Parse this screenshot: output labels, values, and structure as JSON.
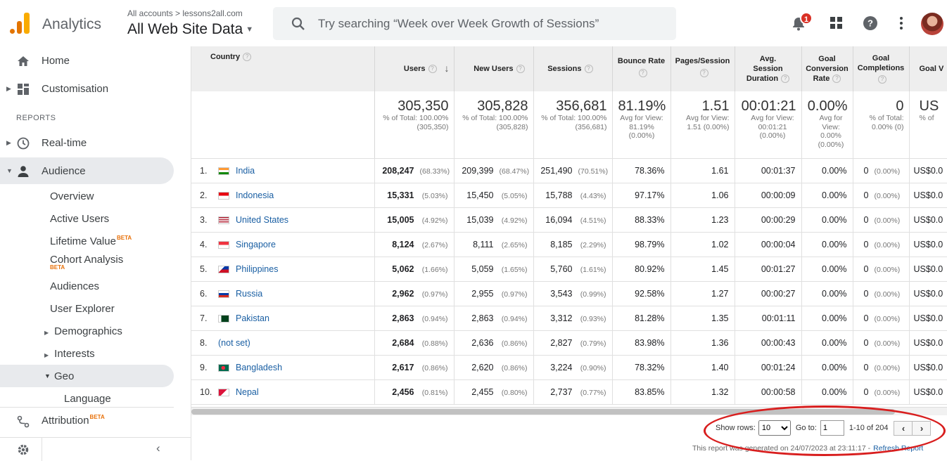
{
  "header": {
    "app_name": "Analytics",
    "account_path": "All accounts > lessons2all.com",
    "property_view": "All Web Site Data",
    "search_placeholder": "Try searching “Week over Week Growth of Sessions”",
    "notification_count": "1",
    "icons": [
      "search-icon",
      "bell-icon",
      "apps-grid-icon",
      "help-icon",
      "more-vert-icon",
      "avatar"
    ]
  },
  "sidebar": {
    "home": "Home",
    "customisation": "Customisation",
    "reports_label": "REPORTS",
    "realtime": "Real-time",
    "audience": "Audience",
    "audience_items": {
      "overview": "Overview",
      "active_users": "Active Users",
      "lifetime_value": "Lifetime Value",
      "cohort_analysis": "Cohort Analysis",
      "audiences": "Audiences",
      "user_explorer": "User Explorer",
      "demographics": "Demographics",
      "interests": "Interests",
      "geo": "Geo",
      "language": "Language"
    },
    "beta": "BETA",
    "attribution": "Attribution",
    "accent_color": "#e8710a"
  },
  "table": {
    "headers": {
      "country": "Country",
      "users": "Users",
      "new_users": "New Users",
      "sessions": "Sessions",
      "bounce_rate": "Bounce Rate",
      "pages_session": "Pages/Session",
      "avg_session_duration": "Avg. Session Duration",
      "goal_conversion_rate": "Goal Conversion Rate",
      "goal_completions": "Goal Completions",
      "goal_value": "Goal V"
    },
    "totals": {
      "users": {
        "big": "305,350",
        "sub": "% of Total: 100.00% (305,350)"
      },
      "new_users": {
        "big": "305,828",
        "sub": "% of Total: 100.00% (305,828)"
      },
      "sessions": {
        "big": "356,681",
        "sub": "% of Total: 100.00% (356,681)"
      },
      "bounce_rate": {
        "big": "81.19%",
        "sub": "Avg for View: 81.19% (0.00%)"
      },
      "pages_session": {
        "big": "1.51",
        "sub": "Avg for View: 1.51 (0.00%)"
      },
      "avg_session_duration": {
        "big": "00:01:21",
        "sub": "Avg for View: 00:01:21 (0.00%)"
      },
      "goal_conversion_rate": {
        "big": "0.00%",
        "sub": "Avg for View: 0.00% (0.00%)"
      },
      "goal_completions": {
        "big": "0",
        "sub": "% of Total: 0.00% (0)"
      },
      "goal_value": {
        "big": "US",
        "sub": "% of"
      }
    },
    "rows": [
      {
        "n": "1.",
        "country": "India",
        "users": "208,247",
        "users_pct": "(68.33%)",
        "new_users": "209,399",
        "new_users_pct": "(68.47%)",
        "sessions": "251,490",
        "sessions_pct": "(70.51%)",
        "bounce": "78.36%",
        "pps": "1.61",
        "dur": "00:01:37",
        "gcr": "0.00%",
        "gc": "0",
        "gc_pct": "(0.00%)",
        "gv": "US$0.0"
      },
      {
        "n": "2.",
        "country": "Indonesia",
        "users": "15,331",
        "users_pct": "(5.03%)",
        "new_users": "15,450",
        "new_users_pct": "(5.05%)",
        "sessions": "15,788",
        "sessions_pct": "(4.43%)",
        "bounce": "97.17%",
        "pps": "1.06",
        "dur": "00:00:09",
        "gcr": "0.00%",
        "gc": "0",
        "gc_pct": "(0.00%)",
        "gv": "US$0.0"
      },
      {
        "n": "3.",
        "country": "United States",
        "users": "15,005",
        "users_pct": "(4.92%)",
        "new_users": "15,039",
        "new_users_pct": "(4.92%)",
        "sessions": "16,094",
        "sessions_pct": "(4.51%)",
        "bounce": "88.33%",
        "pps": "1.23",
        "dur": "00:00:29",
        "gcr": "0.00%",
        "gc": "0",
        "gc_pct": "(0.00%)",
        "gv": "US$0.0"
      },
      {
        "n": "4.",
        "country": "Singapore",
        "users": "8,124",
        "users_pct": "(2.67%)",
        "new_users": "8,111",
        "new_users_pct": "(2.65%)",
        "sessions": "8,185",
        "sessions_pct": "(2.29%)",
        "bounce": "98.79%",
        "pps": "1.02",
        "dur": "00:00:04",
        "gcr": "0.00%",
        "gc": "0",
        "gc_pct": "(0.00%)",
        "gv": "US$0.0"
      },
      {
        "n": "5.",
        "country": "Philippines",
        "users": "5,062",
        "users_pct": "(1.66%)",
        "new_users": "5,059",
        "new_users_pct": "(1.65%)",
        "sessions": "5,760",
        "sessions_pct": "(1.61%)",
        "bounce": "80.92%",
        "pps": "1.45",
        "dur": "00:01:27",
        "gcr": "0.00%",
        "gc": "0",
        "gc_pct": "(0.00%)",
        "gv": "US$0.0"
      },
      {
        "n": "6.",
        "country": "Russia",
        "users": "2,962",
        "users_pct": "(0.97%)",
        "new_users": "2,955",
        "new_users_pct": "(0.97%)",
        "sessions": "3,543",
        "sessions_pct": "(0.99%)",
        "bounce": "92.58%",
        "pps": "1.27",
        "dur": "00:00:27",
        "gcr": "0.00%",
        "gc": "0",
        "gc_pct": "(0.00%)",
        "gv": "US$0.0"
      },
      {
        "n": "7.",
        "country": "Pakistan",
        "users": "2,863",
        "users_pct": "(0.94%)",
        "new_users": "2,863",
        "new_users_pct": "(0.94%)",
        "sessions": "3,312",
        "sessions_pct": "(0.93%)",
        "bounce": "81.28%",
        "pps": "1.35",
        "dur": "00:01:11",
        "gcr": "0.00%",
        "gc": "0",
        "gc_pct": "(0.00%)",
        "gv": "US$0.0"
      },
      {
        "n": "8.",
        "country": "(not set)",
        "users": "2,684",
        "users_pct": "(0.88%)",
        "new_users": "2,636",
        "new_users_pct": "(0.86%)",
        "sessions": "2,827",
        "sessions_pct": "(0.79%)",
        "bounce": "83.98%",
        "pps": "1.36",
        "dur": "00:00:43",
        "gcr": "0.00%",
        "gc": "0",
        "gc_pct": "(0.00%)",
        "gv": "US$0.0"
      },
      {
        "n": "9.",
        "country": "Bangladesh",
        "users": "2,617",
        "users_pct": "(0.86%)",
        "new_users": "2,620",
        "new_users_pct": "(0.86%)",
        "sessions": "3,224",
        "sessions_pct": "(0.90%)",
        "bounce": "78.32%",
        "pps": "1.40",
        "dur": "00:01:24",
        "gcr": "0.00%",
        "gc": "0",
        "gc_pct": "(0.00%)",
        "gv": "US$0.0"
      },
      {
        "n": "10.",
        "country": "Nepal",
        "users": "2,456",
        "users_pct": "(0.81%)",
        "new_users": "2,455",
        "new_users_pct": "(0.80%)",
        "sessions": "2,737",
        "sessions_pct": "(0.77%)",
        "bounce": "83.85%",
        "pps": "1.32",
        "dur": "00:00:58",
        "gcr": "0.00%",
        "gc": "0",
        "gc_pct": "(0.00%)",
        "gv": "US$0.0"
      }
    ]
  },
  "pager": {
    "show_rows_label": "Show rows:",
    "show_rows_value": "10",
    "goto_label": "Go to:",
    "goto_value": "1",
    "range": "1-10 of 204"
  },
  "footer": {
    "generated": "This report was generated on 24/07/2023 at 23:11:17 -",
    "refresh": "Refresh Report"
  }
}
